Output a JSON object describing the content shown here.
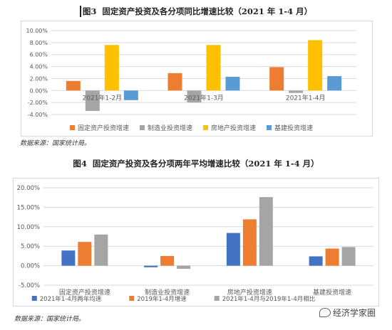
{
  "charts": [
    {
      "caption_lead": "图3",
      "caption_rest": "固定资产投资及各分项同比增速比较（2021 年 1-4 月）",
      "source": "数据来源：国家统计局。",
      "chart_data": {
        "type": "bar",
        "categories": [
          "2021年1-2月",
          "2021年1-3月",
          "2021年1-4月"
        ],
        "series": [
          {
            "name": "固定资产投资增速",
            "color": "#ED7D31",
            "values": [
              1.6,
              2.9,
              3.9
            ]
          },
          {
            "name": "制造业投资增速",
            "color": "#A5A5A5",
            "values": [
              -3.4,
              -2.0,
              -0.4
            ]
          },
          {
            "name": "房地产投资增速",
            "color": "#FFC000",
            "values": [
              7.6,
              7.6,
              8.4
            ]
          },
          {
            "name": "基建投资增速",
            "color": "#5B9BD5",
            "values": [
              -1.6,
              2.3,
              2.4
            ]
          }
        ],
        "ylim": [
          -4,
          10
        ],
        "yticks": [
          "10.00%",
          "8.00%",
          "6.00%",
          "4.00%",
          "2.00%",
          "0.00%",
          "-2.00%",
          "-4.00%"
        ],
        "ytick_values": [
          10,
          8,
          6,
          4,
          2,
          0,
          -2,
          -4
        ],
        "category_labels_at_zero": true,
        "legend_position": "bottom",
        "grid": true
      }
    },
    {
      "caption_lead": "图4",
      "caption_rest": "固定资产投资及各分项两年平均增速比较（2021 年 1-4 月）",
      "source": "数据来源：国家统计局。",
      "chart_data": {
        "type": "bar",
        "categories": [
          "固定资产投资增速",
          "制造业投资增速",
          "房地产投资增速",
          "基建投资增速"
        ],
        "series": [
          {
            "name": "2021年1-4月两年均速",
            "color": "#4472C4",
            "values": [
              3.9,
              -0.4,
              8.4,
              2.4
            ]
          },
          {
            "name": "2019年1-4月增速",
            "color": "#ED7D31",
            "values": [
              6.1,
              2.5,
              11.9,
              4.4
            ]
          },
          {
            "name": "2021年1-4月与2019年1-4月相比",
            "color": "#A5A5A5",
            "values": [
              8.0,
              -0.8,
              17.6,
              4.8
            ]
          }
        ],
        "ylim": [
          -5,
          20
        ],
        "yticks": [
          "20.00%",
          "15.00%",
          "10.00%",
          "5.00%",
          "0.00%",
          "-5.00%"
        ],
        "ytick_values": [
          20,
          15,
          10,
          5,
          0,
          -5
        ],
        "category_labels_at_zero": false,
        "legend_position": "bottom",
        "grid": true
      }
    }
  ],
  "watermark": {
    "text": "经济学家圈",
    "icon": "wechat-icon"
  }
}
